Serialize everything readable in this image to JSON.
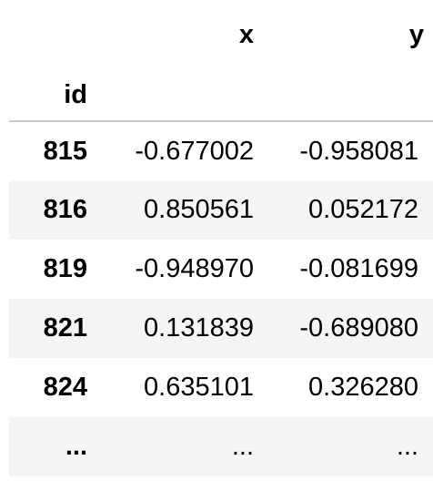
{
  "table": {
    "columns": [
      "x",
      "y"
    ],
    "index_name": "id",
    "rows": [
      {
        "id": "815",
        "x": "-0.677002",
        "y": "-0.958081"
      },
      {
        "id": "816",
        "x": "0.850561",
        "y": "0.052172"
      },
      {
        "id": "819",
        "x": "-0.948970",
        "y": "-0.081699"
      },
      {
        "id": "821",
        "x": "0.131839",
        "y": "-0.689080"
      },
      {
        "id": "824",
        "x": "0.635101",
        "y": "0.326280"
      },
      {
        "id": "...",
        "x": "...",
        "y": "..."
      }
    ]
  }
}
